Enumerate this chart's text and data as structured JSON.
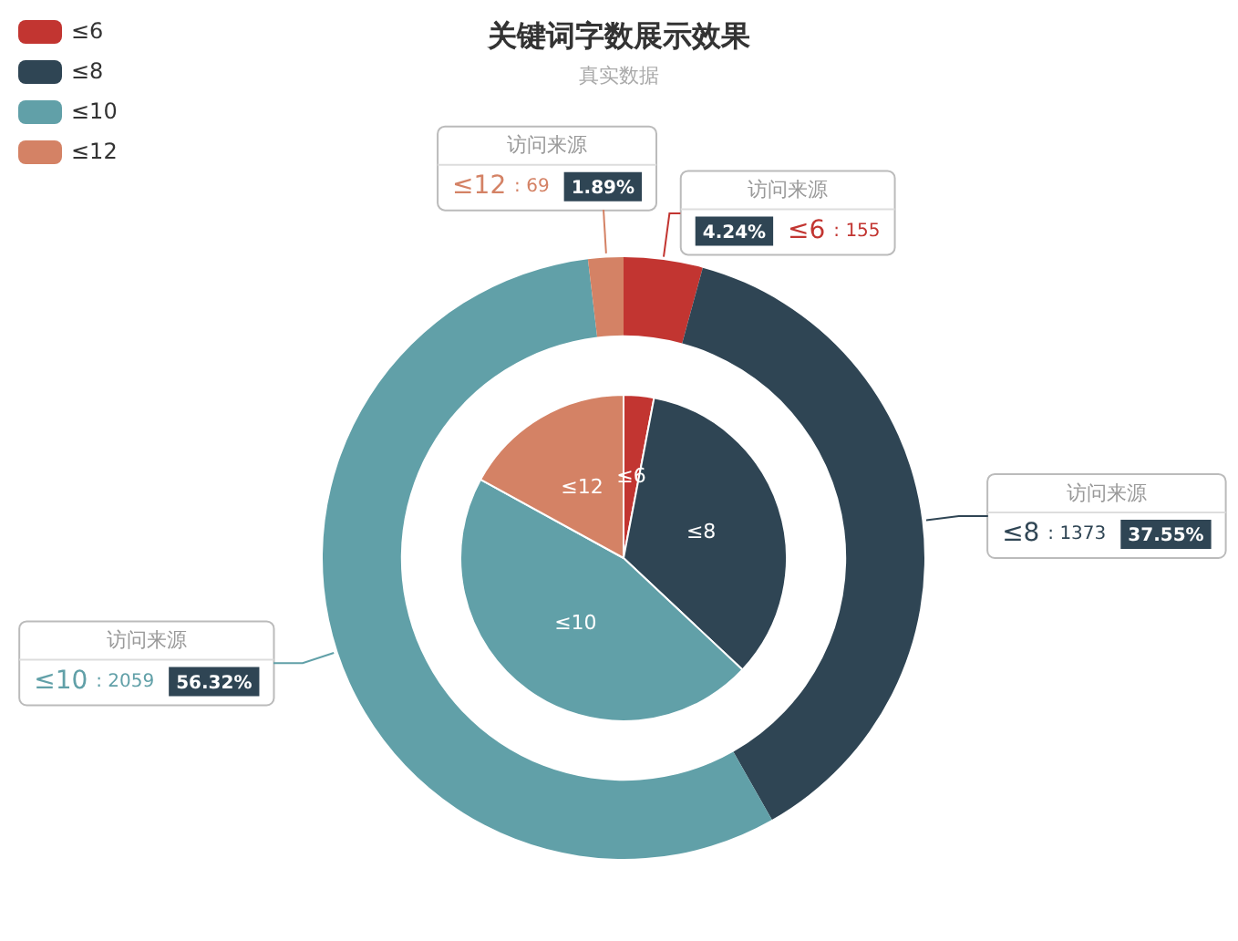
{
  "chart_data": [
    {
      "type": "donut",
      "title": "关键词字数展示效果",
      "subtitle": "真实数据",
      "categories": [
        "≤6",
        "≤8",
        "≤10",
        "≤12"
      ],
      "legend": "top left",
      "data_labels": true,
      "annotations": [
        ": 155",
        ": 1373",
        ": 2059",
        ": 69"
      ],
      "series": [
        {
          "name": "访问来源",
          "values": [
            4.24,
            37.55,
            56.32,
            1.89
          ],
          "colors": [
            "#c23531",
            "#2f4554",
            "#61a0a8",
            "#d48265"
          ],
          "value_labels": [
            "4.24%",
            "37.55%",
            "56.32%",
            "1.89%"
          ]
        }
      ]
    },
    {
      "type": "pie",
      "categories": [
        "≤6",
        "≤8",
        "≤10",
        "≤12"
      ],
      "values": [
        3,
        34,
        46,
        17
      ],
      "colors": [
        "#c23531",
        "#2f4554",
        "#61a0a8",
        "#d48265"
      ]
    }
  ]
}
